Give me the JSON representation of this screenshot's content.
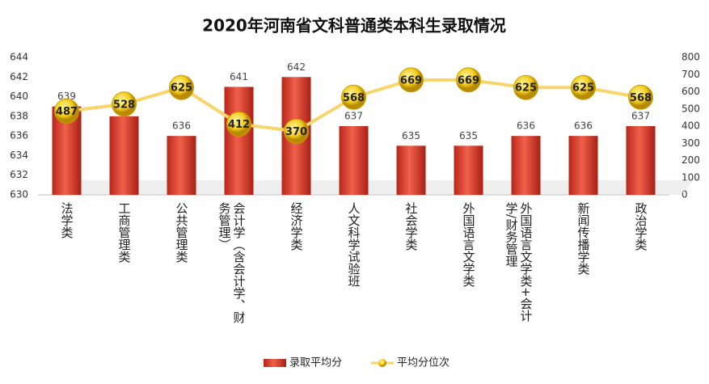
{
  "chart_data": {
    "type": "bar",
    "title": "2020年河南省文科普通类本科生录取情况",
    "categories": [
      "法学类",
      "工商管理类",
      "公共管理类",
      "会计学（含会计学、财务管理）",
      "经济学类",
      "人文科学试验班",
      "社会学类",
      "外国语言文学类",
      "外国语言文学类+会计学/财务管理",
      "新闻传播学类",
      "政治学类"
    ],
    "series": [
      {
        "name": "录取平均分",
        "type": "bar",
        "color": "#d9412b",
        "values": [
          639,
          638,
          636,
          641,
          642,
          637,
          635,
          635,
          636,
          636,
          637
        ]
      },
      {
        "name": "平均分位次",
        "type": "line",
        "axis": "y2",
        "color": "#f7d56a",
        "values": [
          487,
          528,
          625,
          412,
          370,
          568,
          669,
          669,
          625,
          625,
          568
        ]
      }
    ],
    "ylim": [
      630,
      644
    ],
    "yticks": [
      630,
      632,
      634,
      636,
      638,
      640,
      642,
      644
    ],
    "y2lim": [
      0,
      800
    ],
    "y2ticks": [
      0,
      100,
      200,
      300,
      400,
      500,
      600,
      700,
      800
    ],
    "legend": "bottom"
  }
}
